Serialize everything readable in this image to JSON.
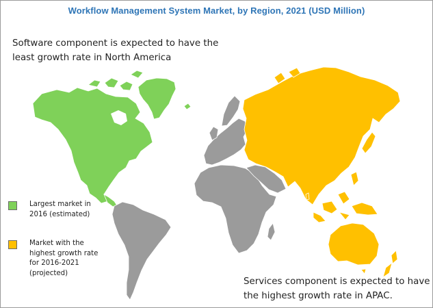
{
  "title": "Workflow Management System Market, by Region, 2021 (USD Million)",
  "annotations": {
    "top": [
      "Software component is expected to have the",
      "least growth rate in North America"
    ],
    "bottom": [
      "Services component is expected to have",
      "the highest growth rate in APAC."
    ]
  },
  "legend": [
    {
      "color": "#7fd159",
      "lines": [
        "Largest market in",
        "2016 (estimated)"
      ]
    },
    {
      "color": "#ffc000",
      "lines": [
        "Market with the",
        "highest growth rate",
        "for 2016-2021",
        "(projected)"
      ]
    }
  ],
  "region_colors": {
    "north_america": "#7fd159",
    "apac": "#ffc000",
    "rest_of_world": "#9b9b9b"
  }
}
